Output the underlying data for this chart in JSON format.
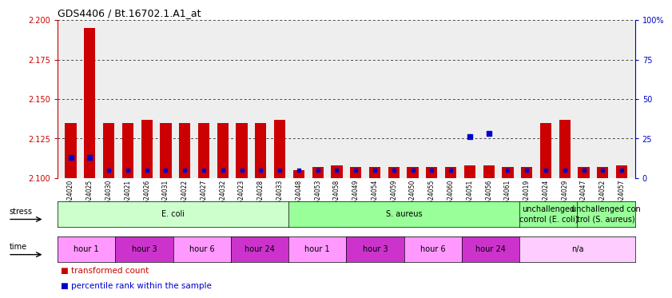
{
  "title": "GDS4406 / Bt.16702.1.A1_at",
  "samples": [
    "GSM624020",
    "GSM624025",
    "GSM624030",
    "GSM624021",
    "GSM624026",
    "GSM624031",
    "GSM624022",
    "GSM624027",
    "GSM624032",
    "GSM624023",
    "GSM624028",
    "GSM624033",
    "GSM624048",
    "GSM624053",
    "GSM624058",
    "GSM624049",
    "GSM624054",
    "GSM624059",
    "GSM624050",
    "GSM624055",
    "GSM624060",
    "GSM624051",
    "GSM624056",
    "GSM624061",
    "GSM624019",
    "GSM624024",
    "GSM624029",
    "GSM624047",
    "GSM624052",
    "GSM624057"
  ],
  "red_values": [
    2.135,
    2.195,
    2.135,
    2.135,
    2.137,
    2.135,
    2.135,
    2.135,
    2.135,
    2.135,
    2.135,
    2.137,
    2.105,
    2.107,
    2.108,
    2.107,
    2.107,
    2.107,
    2.107,
    2.107,
    2.107,
    2.108,
    2.108,
    2.107,
    2.107,
    2.135,
    2.137,
    2.107,
    2.107,
    2.108
  ],
  "blue_values": [
    13,
    13,
    5,
    5,
    5,
    5,
    5,
    5,
    5,
    5,
    5,
    5,
    5,
    5,
    5,
    5,
    5,
    5,
    5,
    5,
    5,
    26,
    28,
    5,
    5,
    5,
    5,
    5,
    5,
    5
  ],
  "ylim_left": [
    2.1,
    2.2
  ],
  "ylim_right": [
    0,
    100
  ],
  "yticks_left": [
    2.1,
    2.125,
    2.15,
    2.175,
    2.2
  ],
  "yticks_right": [
    0,
    25,
    50,
    75,
    100
  ],
  "left_color": "#cc0000",
  "right_color": "#0000cc",
  "bg_color": "#eeeeee",
  "stress_groups": [
    {
      "label": "E. coli",
      "start": 0,
      "end": 12,
      "color": "#ccffcc"
    },
    {
      "label": "S. aureus",
      "start": 12,
      "end": 24,
      "color": "#99ff99"
    },
    {
      "label": "unchallenged\ncontrol (E. coli)",
      "start": 24,
      "end": 27,
      "color": "#99ff99"
    },
    {
      "label": "unchallenged con\ntrol (S. aureus)",
      "start": 27,
      "end": 30,
      "color": "#99ff99"
    }
  ],
  "time_groups": [
    {
      "label": "hour 1",
      "start": 0,
      "end": 3,
      "color": "#ff99ff"
    },
    {
      "label": "hour 3",
      "start": 3,
      "end": 6,
      "color": "#cc33cc"
    },
    {
      "label": "hour 6",
      "start": 6,
      "end": 9,
      "color": "#ff99ff"
    },
    {
      "label": "hour 24",
      "start": 9,
      "end": 12,
      "color": "#cc33cc"
    },
    {
      "label": "hour 1",
      "start": 12,
      "end": 15,
      "color": "#ff99ff"
    },
    {
      "label": "hour 3",
      "start": 15,
      "end": 18,
      "color": "#cc33cc"
    },
    {
      "label": "hour 6",
      "start": 18,
      "end": 21,
      "color": "#ff99ff"
    },
    {
      "label": "hour 24",
      "start": 21,
      "end": 24,
      "color": "#cc33cc"
    },
    {
      "label": "n/a",
      "start": 24,
      "end": 30,
      "color": "#ffccff"
    }
  ]
}
